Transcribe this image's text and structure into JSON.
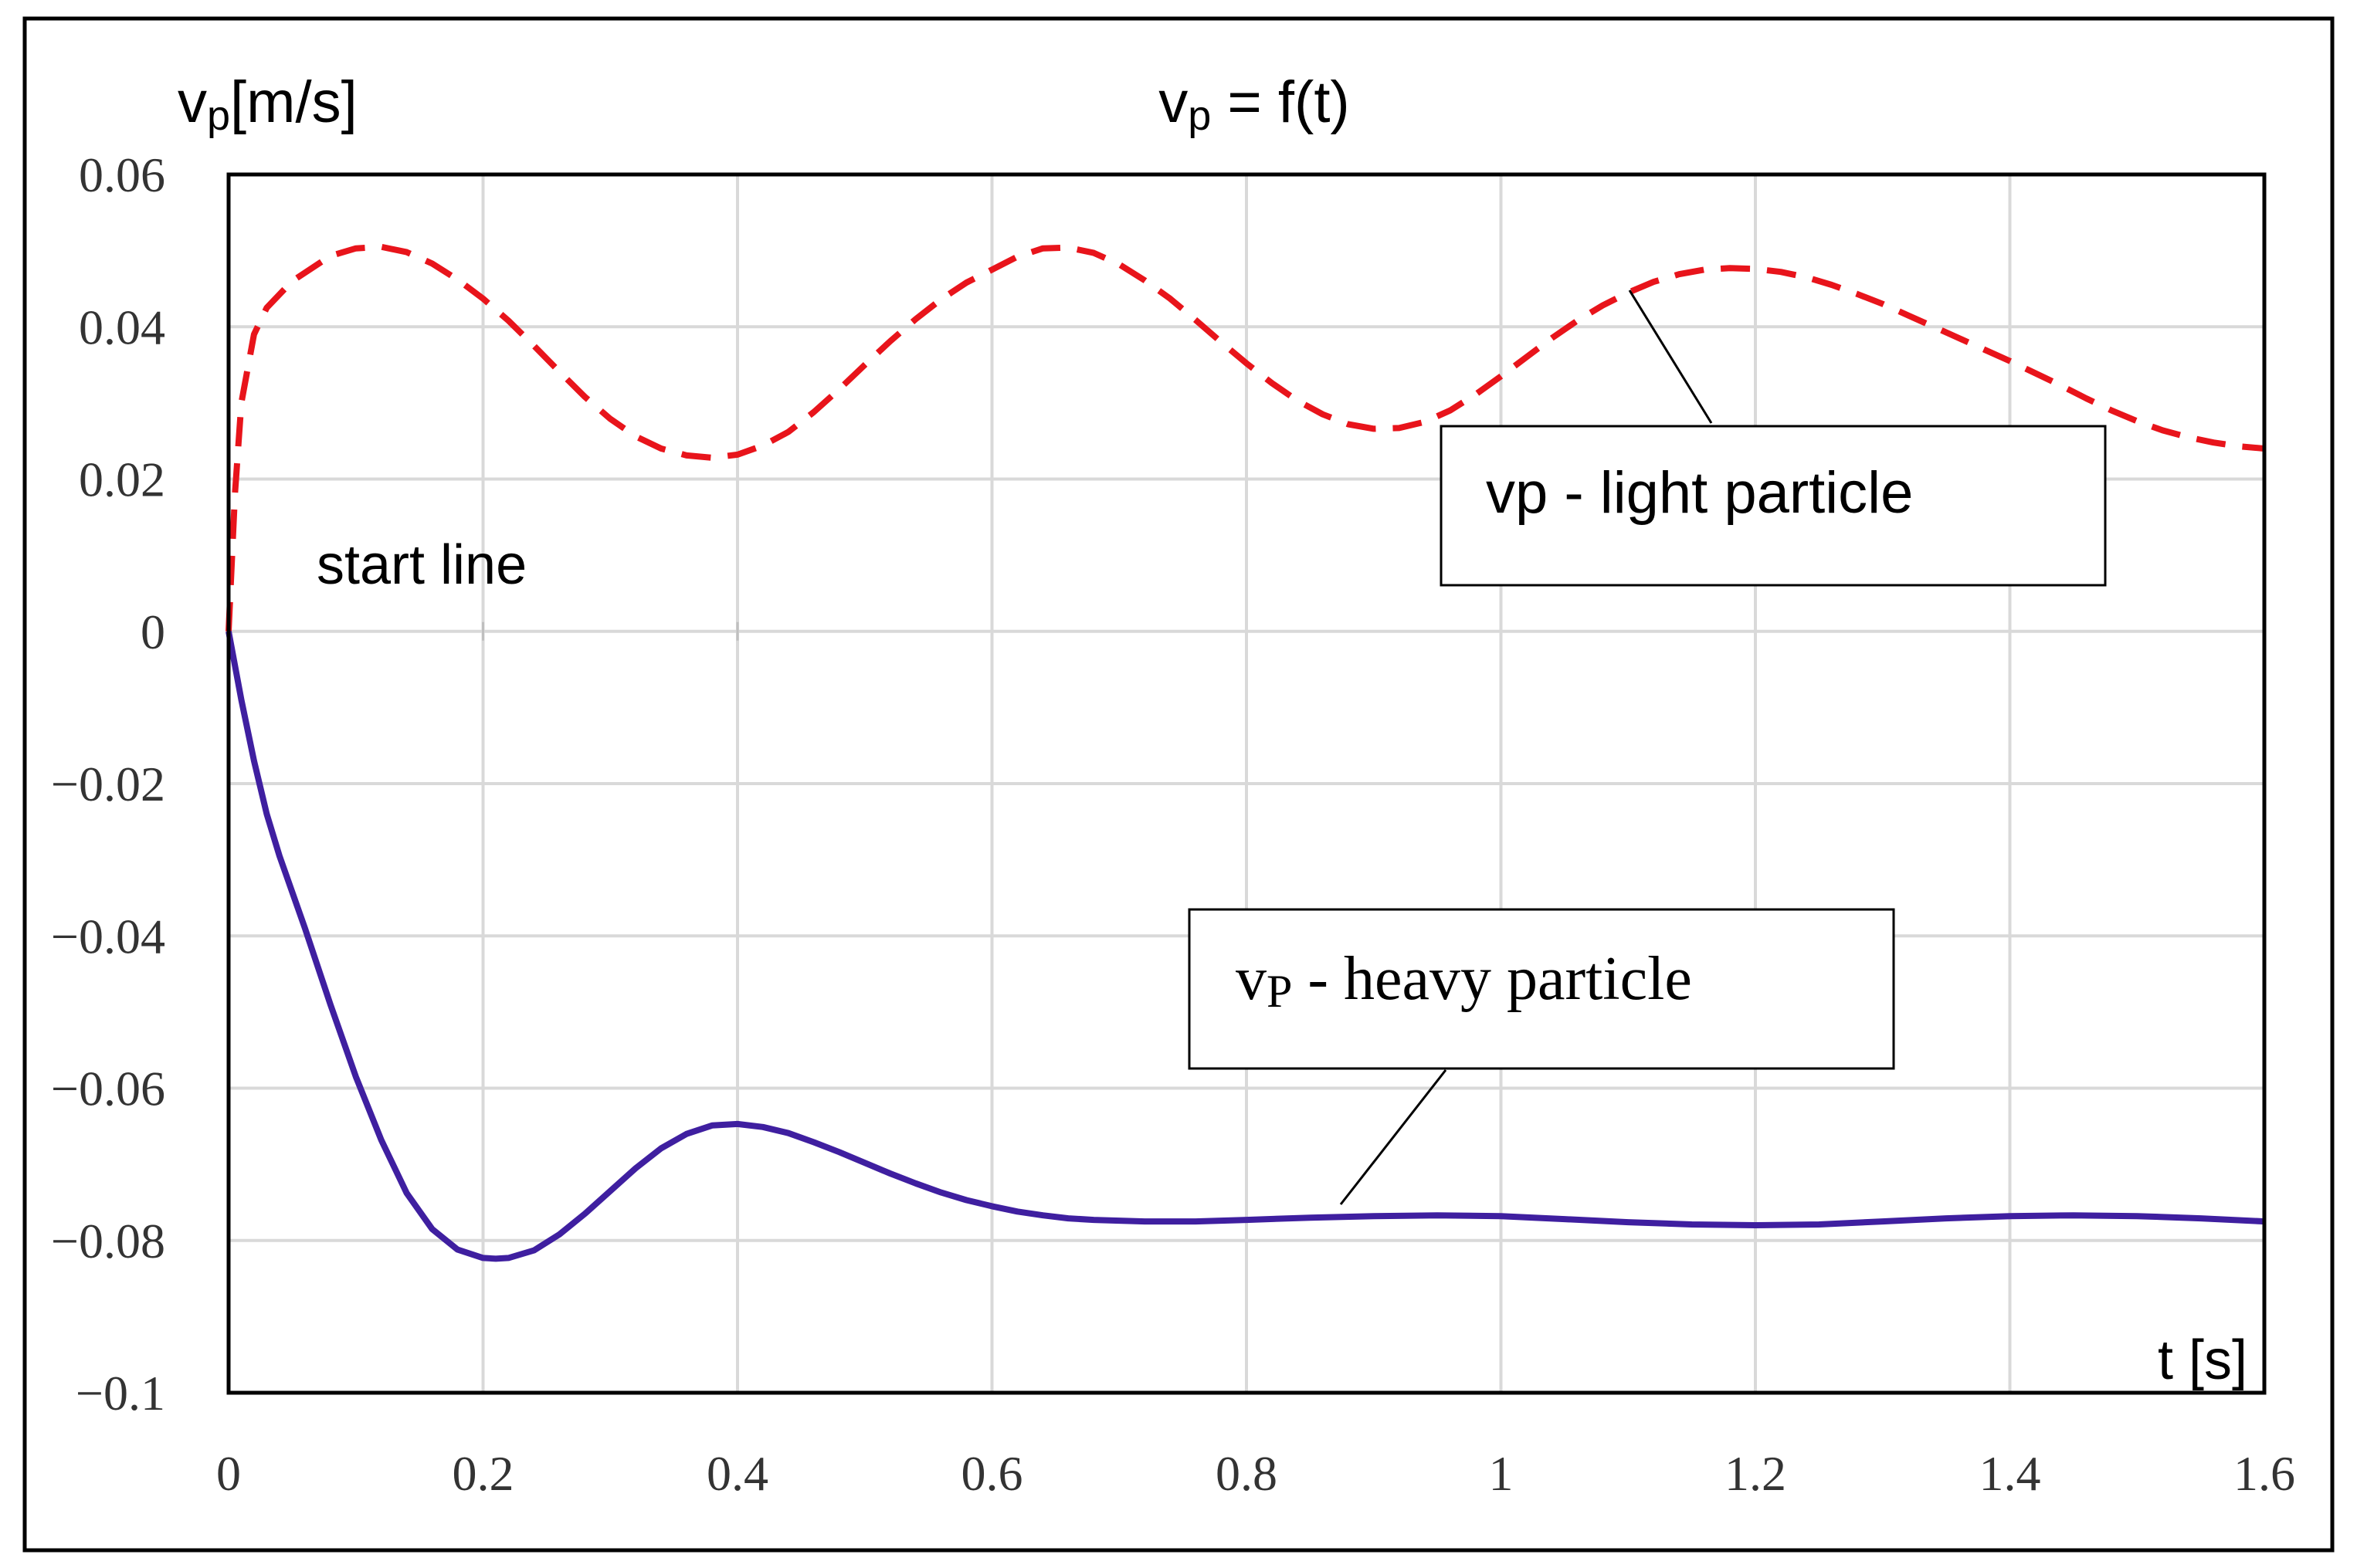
{
  "chart_data": {
    "type": "line",
    "title_main": "v",
    "title_sub": "p",
    "title_rest": " = f(t)",
    "ylabel_main": "v",
    "ylabel_sub": "p",
    "ylabel_rest": "[m/s]",
    "xlabel": "t [s]",
    "xlim": [
      0,
      1.6
    ],
    "ylim": [
      -0.1,
      0.06
    ],
    "x_ticks": [
      0,
      0.2,
      0.4,
      0.6,
      0.8,
      1,
      1.2,
      1.4,
      1.6
    ],
    "x_tick_labels": [
      "0",
      "0.2",
      "0.4",
      "0.6",
      "0.8",
      "1",
      "1.2",
      "1.4",
      "1.6"
    ],
    "y_ticks": [
      0.06,
      0.04,
      0.02,
      0,
      -0.02,
      -0.04,
      -0.06,
      -0.08,
      -0.1
    ],
    "y_tick_labels": [
      "0.06",
      "0.04",
      "0.02",
      "0",
      "−0.02",
      "−0.04",
      "−0.06",
      "−0.08",
      "−0.1"
    ],
    "grid": true,
    "start_line_label": "start line",
    "series": [
      {
        "name": "vp - light particle",
        "color": "#e8141b",
        "dash": true,
        "x": [
          0,
          0.005,
          0.01,
          0.02,
          0.03,
          0.05,
          0.08,
          0.1,
          0.12,
          0.14,
          0.16,
          0.18,
          0.2,
          0.22,
          0.24,
          0.26,
          0.28,
          0.3,
          0.32,
          0.34,
          0.36,
          0.38,
          0.4,
          0.42,
          0.44,
          0.46,
          0.48,
          0.5,
          0.52,
          0.54,
          0.56,
          0.58,
          0.6,
          0.62,
          0.64,
          0.66,
          0.68,
          0.7,
          0.72,
          0.74,
          0.76,
          0.78,
          0.8,
          0.82,
          0.84,
          0.86,
          0.88,
          0.9,
          0.92,
          0.94,
          0.96,
          0.98,
          1.0,
          1.02,
          1.04,
          1.06,
          1.08,
          1.1,
          1.12,
          1.14,
          1.16,
          1.18,
          1.2,
          1.22,
          1.24,
          1.26,
          1.28,
          1.3,
          1.32,
          1.34,
          1.36,
          1.38,
          1.4,
          1.42,
          1.44,
          1.46,
          1.48,
          1.5,
          1.52,
          1.54,
          1.56,
          1.58,
          1.6
        ],
        "values": [
          0.0,
          0.018,
          0.03,
          0.039,
          0.0425,
          0.046,
          0.0493,
          0.0503,
          0.0505,
          0.0498,
          0.0483,
          0.0462,
          0.0437,
          0.0408,
          0.0375,
          0.0341,
          0.0308,
          0.0279,
          0.0256,
          0.024,
          0.0231,
          0.0228,
          0.0232,
          0.0244,
          0.0262,
          0.0288,
          0.0318,
          0.035,
          0.0381,
          0.041,
          0.0436,
          0.0458,
          0.0475,
          0.0492,
          0.0503,
          0.0504,
          0.0497,
          0.0482,
          0.0461,
          0.0437,
          0.0409,
          0.038,
          0.0352,
          0.0326,
          0.0303,
          0.0285,
          0.0272,
          0.0266,
          0.0267,
          0.0275,
          0.029,
          0.0311,
          0.0335,
          0.036,
          0.0385,
          0.0408,
          0.0428,
          0.0445,
          0.0459,
          0.0469,
          0.0475,
          0.0477,
          0.0476,
          0.0472,
          0.0465,
          0.0455,
          0.0443,
          0.043,
          0.0415,
          0.04,
          0.0385,
          0.037,
          0.0355,
          0.0339,
          0.0323,
          0.0306,
          0.029,
          0.0276,
          0.0264,
          0.0255,
          0.0248,
          0.0243,
          0.024
        ]
      },
      {
        "name": "vp - heavy particle",
        "color": "#3f1fa0",
        "dash": false,
        "x": [
          0,
          0.01,
          0.02,
          0.03,
          0.04,
          0.06,
          0.08,
          0.1,
          0.12,
          0.14,
          0.16,
          0.18,
          0.2,
          0.21,
          0.22,
          0.24,
          0.26,
          0.28,
          0.3,
          0.32,
          0.34,
          0.36,
          0.38,
          0.4,
          0.42,
          0.44,
          0.46,
          0.48,
          0.5,
          0.52,
          0.54,
          0.56,
          0.58,
          0.6,
          0.62,
          0.64,
          0.66,
          0.68,
          0.7,
          0.72,
          0.74,
          0.76,
          0.78,
          0.8,
          0.85,
          0.9,
          0.95,
          1.0,
          1.05,
          1.1,
          1.15,
          1.2,
          1.25,
          1.3,
          1.35,
          1.4,
          1.45,
          1.5,
          1.55,
          1.6
        ],
        "values": [
          0.0,
          -0.009,
          -0.017,
          -0.024,
          -0.0295,
          -0.039,
          -0.049,
          -0.0585,
          -0.0668,
          -0.0738,
          -0.0785,
          -0.0812,
          -0.0823,
          -0.0824,
          -0.0823,
          -0.0813,
          -0.0792,
          -0.0765,
          -0.0735,
          -0.0705,
          -0.0679,
          -0.066,
          -0.0649,
          -0.0647,
          -0.0651,
          -0.0659,
          -0.0671,
          -0.0684,
          -0.0698,
          -0.0712,
          -0.0725,
          -0.0737,
          -0.0747,
          -0.0755,
          -0.0762,
          -0.0767,
          -0.0771,
          -0.0773,
          -0.0774,
          -0.0775,
          -0.0775,
          -0.0775,
          -0.0774,
          -0.0773,
          -0.077,
          -0.0768,
          -0.0767,
          -0.0768,
          -0.0772,
          -0.0776,
          -0.0779,
          -0.078,
          -0.0779,
          -0.0775,
          -0.0771,
          -0.0768,
          -0.0767,
          -0.0768,
          -0.0771,
          -0.0775
        ]
      }
    ]
  },
  "legend_boxes": {
    "light_main": "vp - light particle",
    "heavy_main": "v",
    "heavy_sub": "P",
    "heavy_rest": " - heavy particle"
  }
}
